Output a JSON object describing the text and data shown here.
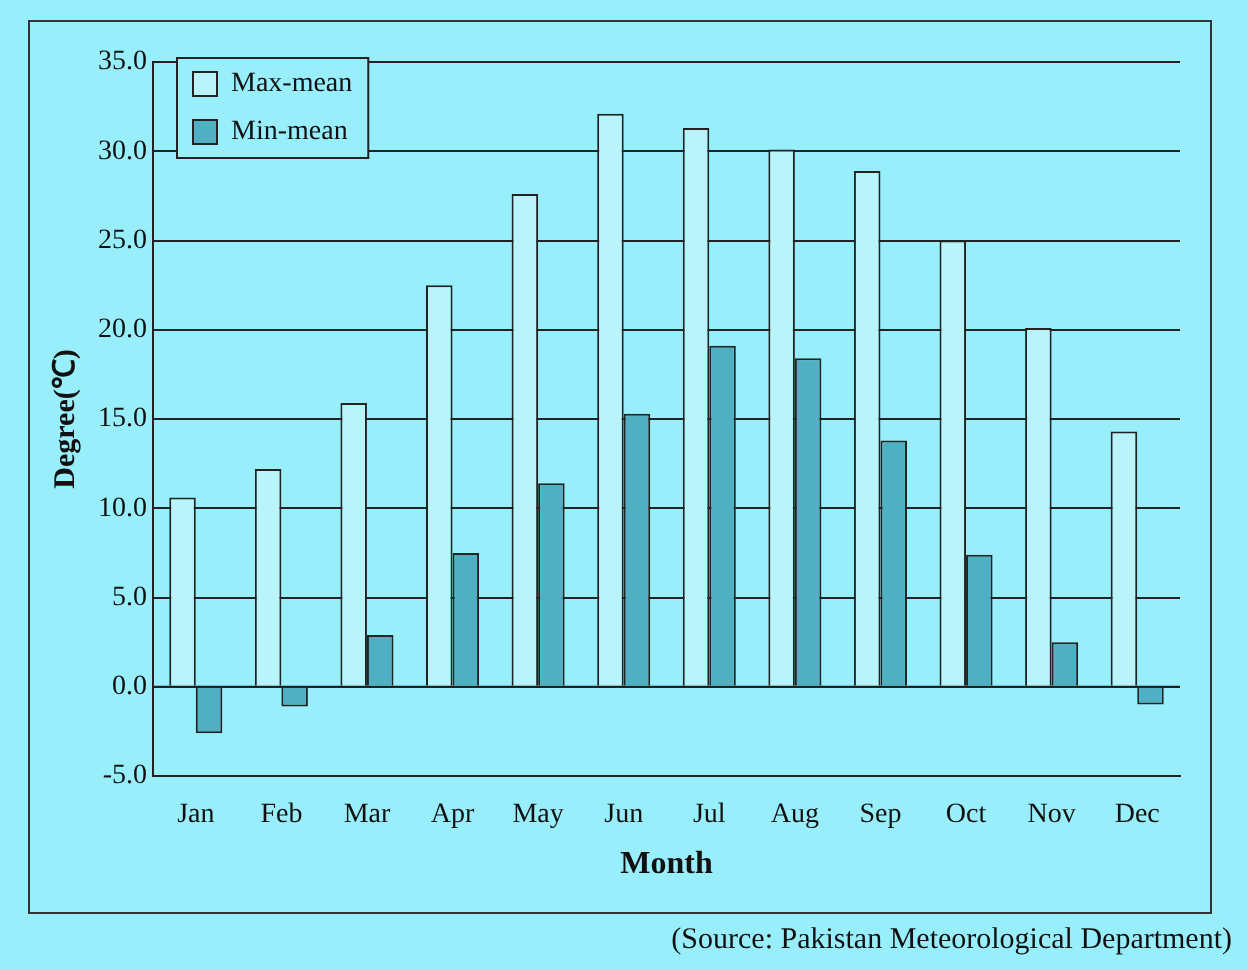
{
  "chart_data": {
    "type": "bar",
    "xlabel": "Month",
    "ylabel": "Degree(℃)",
    "categories": [
      "Jan",
      "Feb",
      "Mar",
      "Apr",
      "May",
      "Jun",
      "Jul",
      "Aug",
      "Sep",
      "Oct",
      "Nov",
      "Dec"
    ],
    "series": [
      {
        "name": "Max-mean",
        "color": "#b8f4fa",
        "values": [
          10.6,
          12.2,
          15.9,
          22.5,
          27.6,
          32.1,
          31.3,
          30.1,
          28.9,
          25.0,
          20.1,
          14.3
        ]
      },
      {
        "name": "Min-mean",
        "color": "#4fb0c4",
        "values": [
          -2.6,
          -1.1,
          2.9,
          7.5,
          11.4,
          15.3,
          19.1,
          18.4,
          13.8,
          7.4,
          2.5,
          -1.0
        ]
      }
    ],
    "ylim": [
      -5,
      35
    ],
    "yticks": [
      {
        "value": -5,
        "label": "-5.0"
      },
      {
        "value": 0,
        "label": "0.0"
      },
      {
        "value": 5,
        "label": "5.0"
      },
      {
        "value": 10,
        "label": "10.0"
      },
      {
        "value": 15,
        "label": "15.0"
      },
      {
        "value": 20,
        "label": "20.0"
      },
      {
        "value": 25,
        "label": "25.0"
      },
      {
        "value": 30,
        "label": "30.0"
      },
      {
        "value": 35,
        "label": "35.0"
      }
    ],
    "grid": "y",
    "legend": "top left",
    "annotations": [
      "(Source: Pakistan Meteorological Department)"
    ]
  }
}
